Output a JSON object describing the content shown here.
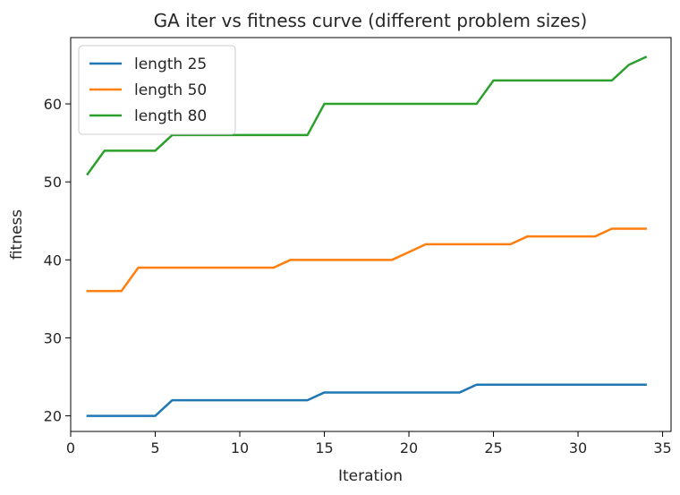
{
  "chart_data": {
    "type": "line",
    "title": "GA iter vs fitness curve (different problem sizes)",
    "xlabel": "Iteration",
    "ylabel": "fitness",
    "xlim": [
      0,
      35.5
    ],
    "ylim": [
      18.0,
      68.5
    ],
    "xticks": [
      0,
      5,
      10,
      15,
      20,
      25,
      30,
      35
    ],
    "yticks": [
      20,
      30,
      40,
      50,
      60
    ],
    "grid": false,
    "legend_position": "upper-left",
    "x": [
      1,
      2,
      3,
      4,
      5,
      6,
      7,
      8,
      9,
      10,
      11,
      12,
      13,
      14,
      15,
      16,
      17,
      18,
      19,
      20,
      21,
      22,
      23,
      24,
      25,
      26,
      27,
      28,
      29,
      30,
      31,
      32,
      33,
      34
    ],
    "series": [
      {
        "name": "length 25",
        "color": "#1f77b4",
        "values": [
          20,
          20,
          20,
          20,
          20,
          22,
          22,
          22,
          22,
          22,
          22,
          22,
          22,
          22,
          23,
          23,
          23,
          23,
          23,
          23,
          23,
          23,
          23,
          24,
          24,
          24,
          24,
          24,
          24,
          24,
          24,
          24,
          24,
          24
        ]
      },
      {
        "name": "length 50",
        "color": "#ff7f0e",
        "values": [
          36,
          36,
          36,
          39,
          39,
          39,
          39,
          39,
          39,
          39,
          39,
          39,
          40,
          40,
          40,
          40,
          40,
          40,
          40,
          41,
          42,
          42,
          42,
          42,
          42,
          42,
          43,
          43,
          43,
          43,
          43,
          44,
          44,
          44
        ]
      },
      {
        "name": "length 80",
        "color": "#2ca02c",
        "values": [
          51,
          54,
          54,
          54,
          54,
          56,
          56,
          56,
          56,
          56,
          56,
          56,
          56,
          56,
          60,
          60,
          60,
          60,
          60,
          60,
          60,
          60,
          60,
          60,
          63,
          63,
          63,
          63,
          63,
          63,
          63,
          63,
          65,
          66
        ]
      }
    ]
  }
}
